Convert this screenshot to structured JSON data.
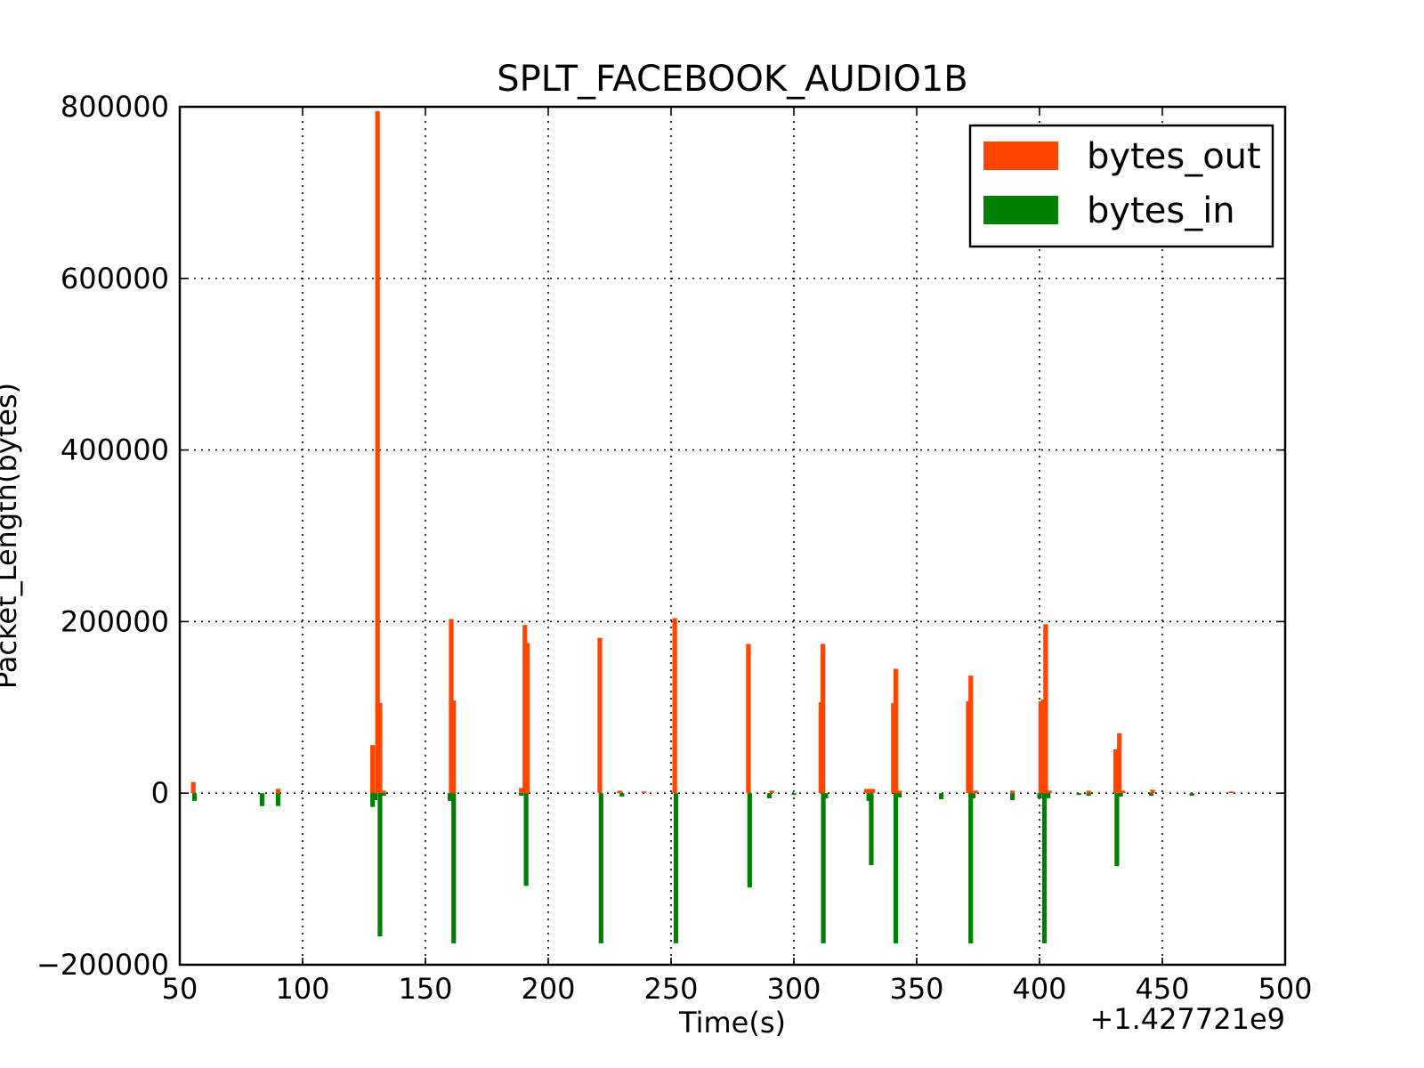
{
  "chart_data": {
    "type": "bar",
    "title": "SPLT_FACEBOOK_AUDIO1B",
    "xlabel": "Time(s)",
    "ylabel": "Packet_Length(bytes)",
    "x_offset_label": "+1.427721e9",
    "xlim": [
      50,
      500
    ],
    "ylim": [
      -200000,
      800000
    ],
    "xticks": [
      50,
      100,
      150,
      200,
      250,
      300,
      350,
      400,
      450,
      500
    ],
    "yticks": [
      -200000,
      0,
      200000,
      400000,
      600000,
      800000
    ],
    "xtick_labels": [
      "50",
      "100",
      "150",
      "200",
      "250",
      "300",
      "350",
      "400",
      "450",
      "500"
    ],
    "ytick_labels": [
      "−200000",
      "0",
      "200000",
      "400000",
      "600000",
      "800000"
    ],
    "grid": true,
    "legend_position": "top-right",
    "series": [
      {
        "name": "bytes_out",
        "color": "#ff4500",
        "points": [
          [
            55.5,
            13000
          ],
          [
            90,
            5000
          ],
          [
            128.5,
            56000
          ],
          [
            130.5,
            795000
          ],
          [
            131.5,
            105000
          ],
          [
            133,
            3000
          ],
          [
            160.5,
            203000
          ],
          [
            161.5,
            108000
          ],
          [
            189,
            6000
          ],
          [
            190.5,
            196000
          ],
          [
            191.5,
            175000
          ],
          [
            221,
            181000
          ],
          [
            229,
            3000
          ],
          [
            239,
            2000
          ],
          [
            251.5,
            204000
          ],
          [
            281.5,
            174000
          ],
          [
            291,
            3000
          ],
          [
            311,
            106000
          ],
          [
            311.8,
            174000
          ],
          [
            329.5,
            5000
          ],
          [
            331,
            5000
          ],
          [
            332,
            5000
          ],
          [
            340.5,
            105000
          ],
          [
            341.5,
            145000
          ],
          [
            343,
            3000
          ],
          [
            371,
            107000
          ],
          [
            372,
            137000
          ],
          [
            374,
            3000
          ],
          [
            389,
            3000
          ],
          [
            400.5,
            107000
          ],
          [
            401.5,
            109000
          ],
          [
            402.5,
            197000
          ],
          [
            404,
            3000
          ],
          [
            420,
            3000
          ],
          [
            431,
            51000
          ],
          [
            432.5,
            70000
          ],
          [
            434,
            3000
          ],
          [
            446,
            4000
          ],
          [
            478,
            2000
          ]
        ]
      },
      {
        "name": "bytes_in",
        "color": "#008000",
        "points": [
          [
            56,
            -9000
          ],
          [
            83.5,
            -15000
          ],
          [
            90,
            -15000
          ],
          [
            128.5,
            -16000
          ],
          [
            129.5,
            -8000
          ],
          [
            131.5,
            -167000
          ],
          [
            133,
            -3000
          ],
          [
            160,
            -9000
          ],
          [
            161.5,
            -175000
          ],
          [
            189,
            -3000
          ],
          [
            191,
            -108000
          ],
          [
            221.5,
            -175000
          ],
          [
            230,
            -4000
          ],
          [
            252,
            -175000
          ],
          [
            282,
            -110000
          ],
          [
            290,
            -6000
          ],
          [
            300,
            -2000
          ],
          [
            312,
            -175000
          ],
          [
            313,
            -6000
          ],
          [
            330.5,
            -9000
          ],
          [
            331.5,
            -84000
          ],
          [
            341.5,
            -175000
          ],
          [
            343,
            -5000
          ],
          [
            360,
            -7000
          ],
          [
            372,
            -175000
          ],
          [
            373,
            -6000
          ],
          [
            389,
            -8000
          ],
          [
            400,
            -6000
          ],
          [
            402,
            -175000
          ],
          [
            403.5,
            -6000
          ],
          [
            416,
            -2000
          ],
          [
            420,
            -3000
          ],
          [
            431.5,
            -85000
          ],
          [
            433,
            -4000
          ],
          [
            445.5,
            -3000
          ],
          [
            462,
            -3000
          ]
        ]
      }
    ]
  }
}
